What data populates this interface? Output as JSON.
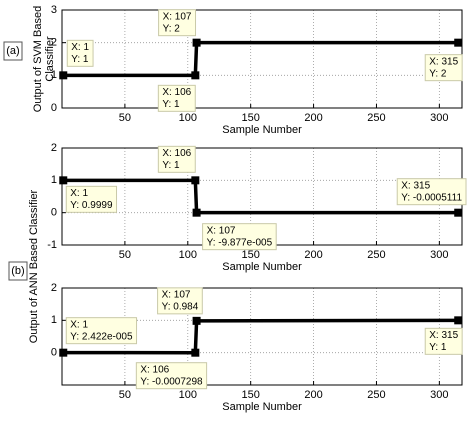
{
  "chart_data": [
    {
      "type": "line",
      "panel_label": "(a)",
      "ylabel": [
        "Output of SVM Based",
        "Classifier"
      ],
      "xlabel": "Sample Number",
      "x": [
        1,
        106,
        107,
        315
      ],
      "values": [
        1,
        1,
        2,
        2
      ],
      "x_labels": [
        "X: 1",
        "X: 106",
        "X: 107",
        "X: 315"
      ],
      "value_labels": [
        "Y: 1",
        "Y: 1",
        "Y: 2",
        "Y: 2"
      ],
      "xlim": [
        0,
        318
      ],
      "ylim": [
        0,
        3
      ],
      "xticks": [
        50,
        100,
        150,
        200,
        250,
        300
      ],
      "yticks": [
        0,
        1,
        2,
        3
      ],
      "grid": true,
      "color": "#000000"
    },
    {
      "type": "line",
      "panel_label": "(b)",
      "ylabel": "Output of ANN Based Classifier",
      "xlabel": "Sample Number",
      "x": [
        1,
        106,
        107,
        315
      ],
      "values": [
        0.9999,
        1,
        -9.877e-05,
        -0.0005111
      ],
      "x_labels": [
        "X: 1",
        "X: 106",
        "X: 107",
        "X: 315"
      ],
      "value_labels": [
        "Y: 0.9999",
        "Y: 1",
        "Y: -9.877e-005",
        "Y: -0.0005111"
      ],
      "xlim": [
        0,
        318
      ],
      "ylim": [
        -1,
        2
      ],
      "xticks": [
        50,
        100,
        150,
        200,
        250,
        300
      ],
      "yticks": [
        -1,
        0,
        1,
        2
      ],
      "grid": true,
      "color": "#000000"
    },
    {
      "type": "line",
      "xlabel": "Sample Number",
      "x": [
        1,
        106,
        107,
        315
      ],
      "values": [
        2.422e-05,
        -0.0007298,
        0.984,
        1
      ],
      "x_labels": [
        "X: 1",
        "X: 106",
        "X: 107",
        "X: 315"
      ],
      "value_labels": [
        "Y: 2.422e-005",
        "Y: -0.0007298",
        "Y: 0.984",
        "Y: 1"
      ],
      "xlim": [
        0,
        318
      ],
      "ylim": [
        -1,
        2
      ],
      "xticks": [
        50,
        100,
        150,
        200,
        250,
        300
      ],
      "yticks": [
        0,
        1,
        2
      ],
      "grid": true,
      "color": "#000000"
    }
  ]
}
